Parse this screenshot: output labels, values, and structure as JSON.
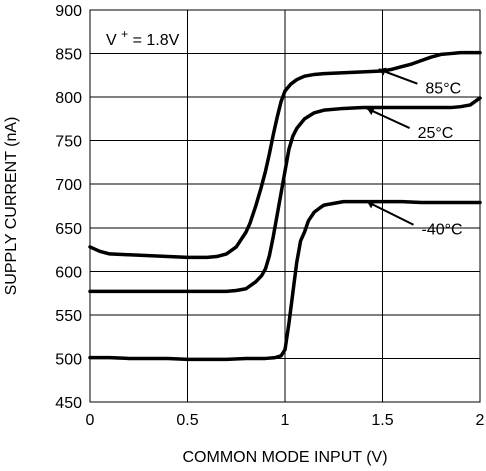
{
  "chart_data": {
    "type": "line",
    "title": "",
    "condition_text": {
      "prefix": "V",
      "superscript": "+",
      "value": " = 1.8V"
    },
    "xlabel": "COMMON MODE INPUT (V)",
    "ylabel": "SUPPLY CURRENT (nA)",
    "xlim": [
      0,
      2
    ],
    "ylim": [
      450,
      900
    ],
    "xticks": [
      0,
      0.5,
      1,
      1.5,
      2
    ],
    "xtick_labels": [
      "0",
      "0.5",
      "1",
      "1.5",
      "2"
    ],
    "yticks": [
      450,
      500,
      550,
      600,
      650,
      700,
      750,
      800,
      850,
      900
    ],
    "ytick_labels": [
      "450",
      "500",
      "550",
      "600",
      "650",
      "700",
      "750",
      "800",
      "850",
      "900"
    ],
    "grid": true,
    "legend": "none",
    "series": [
      {
        "name": "85°C",
        "x": [
          0,
          0.05,
          0.1,
          0.2,
          0.3,
          0.4,
          0.5,
          0.55,
          0.6,
          0.65,
          0.7,
          0.75,
          0.8,
          0.82,
          0.85,
          0.88,
          0.9,
          0.92,
          0.94,
          0.96,
          0.98,
          1.0,
          1.03,
          1.06,
          1.1,
          1.15,
          1.2,
          1.3,
          1.4,
          1.5,
          1.55,
          1.6,
          1.65,
          1.7,
          1.75,
          1.8,
          1.85,
          1.9,
          1.95,
          2.0
        ],
        "y": [
          628,
          623,
          620,
          619,
          618,
          617,
          616,
          616,
          616,
          617,
          620,
          628,
          645,
          655,
          675,
          698,
          715,
          735,
          757,
          777,
          795,
          807,
          815,
          820,
          824,
          826,
          827,
          828,
          829,
          830,
          832,
          835,
          838,
          842,
          846,
          849,
          850,
          851,
          851,
          851
        ],
        "label": "85°C"
      },
      {
        "name": "25°C",
        "x": [
          0,
          0.1,
          0.2,
          0.3,
          0.4,
          0.5,
          0.6,
          0.7,
          0.75,
          0.8,
          0.85,
          0.88,
          0.9,
          0.92,
          0.94,
          0.96,
          0.98,
          1.0,
          1.02,
          1.04,
          1.06,
          1.1,
          1.15,
          1.2,
          1.3,
          1.4,
          1.5,
          1.6,
          1.7,
          1.8,
          1.85,
          1.9,
          1.95,
          2.0
        ],
        "y": [
          577,
          577,
          577,
          577,
          577,
          577,
          577,
          577,
          578,
          580,
          588,
          595,
          603,
          618,
          640,
          665,
          690,
          715,
          740,
          755,
          764,
          775,
          782,
          785,
          787,
          788,
          788,
          788,
          788,
          788,
          788,
          789,
          791,
          799
        ],
        "label": "25°C"
      },
      {
        "name": "-40°C",
        "x": [
          0,
          0.1,
          0.2,
          0.3,
          0.4,
          0.5,
          0.6,
          0.7,
          0.8,
          0.9,
          0.95,
          0.98,
          1.0,
          1.02,
          1.04,
          1.06,
          1.08,
          1.1,
          1.12,
          1.15,
          1.18,
          1.2,
          1.25,
          1.3,
          1.35,
          1.4,
          1.5,
          1.6,
          1.7,
          1.8,
          1.9,
          2.0
        ],
        "y": [
          501,
          501,
          500,
          500,
          500,
          499,
          499,
          499,
          500,
          500,
          501,
          503,
          510,
          540,
          575,
          610,
          635,
          645,
          658,
          668,
          673,
          676,
          678,
          680,
          680,
          680,
          680,
          680,
          679,
          679,
          679,
          679
        ],
        "label": "-40°C"
      }
    ],
    "annotations": [
      {
        "series": "85°C",
        "text": "85°C",
        "arrow_to": [
          1.48,
          832
        ],
        "text_at": [
          1.72,
          804
        ]
      },
      {
        "series": "25°C",
        "text": "25°C",
        "arrow_to": [
          1.42,
          787
        ],
        "text_at": [
          1.68,
          753
        ]
      },
      {
        "series": "-40°C",
        "text": "-40°C",
        "arrow_to": [
          1.42,
          680
        ],
        "text_at": [
          1.7,
          642
        ]
      }
    ]
  }
}
